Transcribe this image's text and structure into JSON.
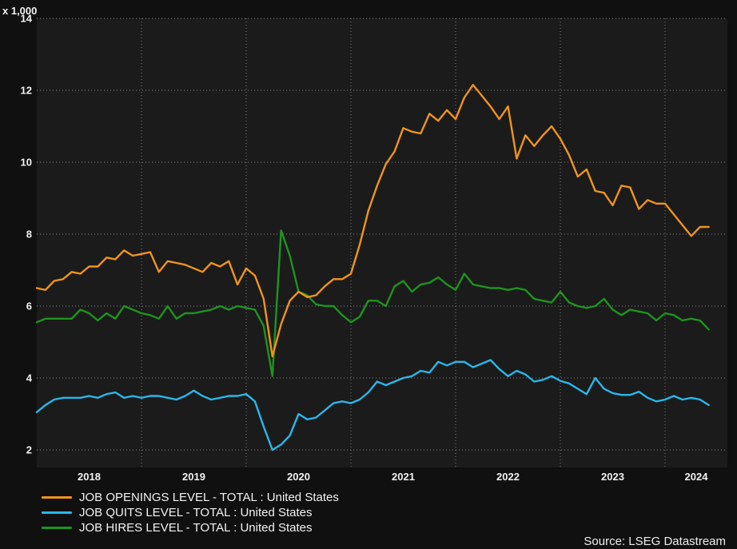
{
  "page": {
    "unit_label": "x 1,000",
    "source": "Source: LSEG Datastream"
  },
  "chart_data": {
    "type": "line",
    "title": "",
    "xlabel": "",
    "ylabel": "x 1,000",
    "ylim": [
      1.5,
      14
    ],
    "yticks": [
      2,
      4,
      6,
      8,
      10,
      12,
      14
    ],
    "xticks": [
      "2018",
      "2019",
      "2020",
      "2021",
      "2022",
      "2023",
      "2024"
    ],
    "grid": "dotted",
    "legend_position": "bottom-left",
    "plot_background": "#1b1b1b",
    "page_background": "#101010",
    "months": [
      "2018-01",
      "2018-02",
      "2018-03",
      "2018-04",
      "2018-05",
      "2018-06",
      "2018-07",
      "2018-08",
      "2018-09",
      "2018-10",
      "2018-11",
      "2018-12",
      "2019-01",
      "2019-02",
      "2019-03",
      "2019-04",
      "2019-05",
      "2019-06",
      "2019-07",
      "2019-08",
      "2019-09",
      "2019-10",
      "2019-11",
      "2019-12",
      "2020-01",
      "2020-02",
      "2020-03",
      "2020-04",
      "2020-05",
      "2020-06",
      "2020-07",
      "2020-08",
      "2020-09",
      "2020-10",
      "2020-11",
      "2020-12",
      "2021-01",
      "2021-02",
      "2021-03",
      "2021-04",
      "2021-05",
      "2021-06",
      "2021-07",
      "2021-08",
      "2021-09",
      "2021-10",
      "2021-11",
      "2021-12",
      "2022-01",
      "2022-02",
      "2022-03",
      "2022-04",
      "2022-05",
      "2022-06",
      "2022-07",
      "2022-08",
      "2022-09",
      "2022-10",
      "2022-11",
      "2022-12",
      "2023-01",
      "2023-02",
      "2023-03",
      "2023-04",
      "2023-05",
      "2023-06",
      "2023-07",
      "2023-08",
      "2023-09",
      "2023-10",
      "2023-11",
      "2023-12",
      "2024-01",
      "2024-02",
      "2024-03",
      "2024-04",
      "2024-05",
      "2024-06"
    ],
    "series": [
      {
        "label": "JOB OPENINGS LEVEL - TOTAL : United States",
        "color": "#ef941d",
        "values": [
          6.5,
          6.45,
          6.7,
          6.75,
          6.95,
          6.9,
          7.1,
          7.1,
          7.35,
          7.3,
          7.55,
          7.4,
          7.45,
          7.5,
          6.95,
          7.25,
          7.2,
          7.15,
          7.05,
          6.95,
          7.2,
          7.1,
          7.25,
          6.6,
          7.05,
          6.85,
          6.2,
          4.6,
          5.5,
          6.15,
          6.4,
          6.25,
          6.3,
          6.55,
          6.75,
          6.75,
          6.9,
          7.7,
          8.65,
          9.35,
          9.95,
          10.3,
          10.95,
          10.85,
          10.8,
          11.35,
          11.15,
          11.45,
          11.2,
          11.8,
          12.15,
          11.85,
          11.55,
          11.2,
          11.55,
          10.1,
          10.75,
          10.45,
          10.75,
          11.0,
          10.65,
          10.2,
          9.6,
          9.8,
          9.2,
          9.15,
          8.8,
          9.35,
          9.3,
          8.7,
          8.95,
          8.85,
          8.85,
          8.55,
          8.25,
          7.95,
          8.2,
          8.2
        ]
      },
      {
        "label": "JOB QUITS LEVEL - TOTAL : United States",
        "color": "#29b7ea",
        "values": [
          3.05,
          3.25,
          3.4,
          3.45,
          3.45,
          3.45,
          3.5,
          3.45,
          3.55,
          3.6,
          3.45,
          3.5,
          3.45,
          3.5,
          3.5,
          3.45,
          3.4,
          3.5,
          3.65,
          3.5,
          3.4,
          3.45,
          3.5,
          3.5,
          3.55,
          3.35,
          2.65,
          2.0,
          2.15,
          2.4,
          3.0,
          2.85,
          2.9,
          3.1,
          3.3,
          3.35,
          3.3,
          3.4,
          3.6,
          3.9,
          3.8,
          3.9,
          4.0,
          4.05,
          4.2,
          4.15,
          4.45,
          4.35,
          4.45,
          4.45,
          4.3,
          4.4,
          4.5,
          4.25,
          4.05,
          4.2,
          4.1,
          3.9,
          3.95,
          4.05,
          3.92,
          3.85,
          3.7,
          3.55,
          4.0,
          3.7,
          3.58,
          3.53,
          3.53,
          3.62,
          3.45,
          3.35,
          3.4,
          3.5,
          3.4,
          3.45,
          3.4,
          3.25
        ]
      },
      {
        "label": "JOB HIRES LEVEL - TOTAL : United States",
        "color": "#1e941e",
        "values": [
          5.55,
          5.65,
          5.65,
          5.65,
          5.65,
          5.9,
          5.8,
          5.6,
          5.8,
          5.65,
          6.0,
          5.9,
          5.8,
          5.75,
          5.65,
          6.0,
          5.65,
          5.8,
          5.8,
          5.85,
          5.9,
          6.0,
          5.9,
          6.0,
          5.95,
          5.9,
          5.45,
          4.05,
          8.1,
          7.4,
          6.4,
          6.3,
          6.05,
          6.0,
          6.0,
          5.75,
          5.55,
          5.7,
          6.15,
          6.15,
          6.0,
          6.55,
          6.7,
          6.4,
          6.6,
          6.65,
          6.8,
          6.6,
          6.45,
          6.9,
          6.6,
          6.55,
          6.5,
          6.5,
          6.45,
          6.5,
          6.45,
          6.2,
          6.15,
          6.1,
          6.4,
          6.1,
          6.0,
          5.95,
          6.0,
          6.2,
          5.9,
          5.75,
          5.9,
          5.85,
          5.8,
          5.6,
          5.8,
          5.75,
          5.6,
          5.65,
          5.6,
          5.35
        ]
      }
    ]
  }
}
